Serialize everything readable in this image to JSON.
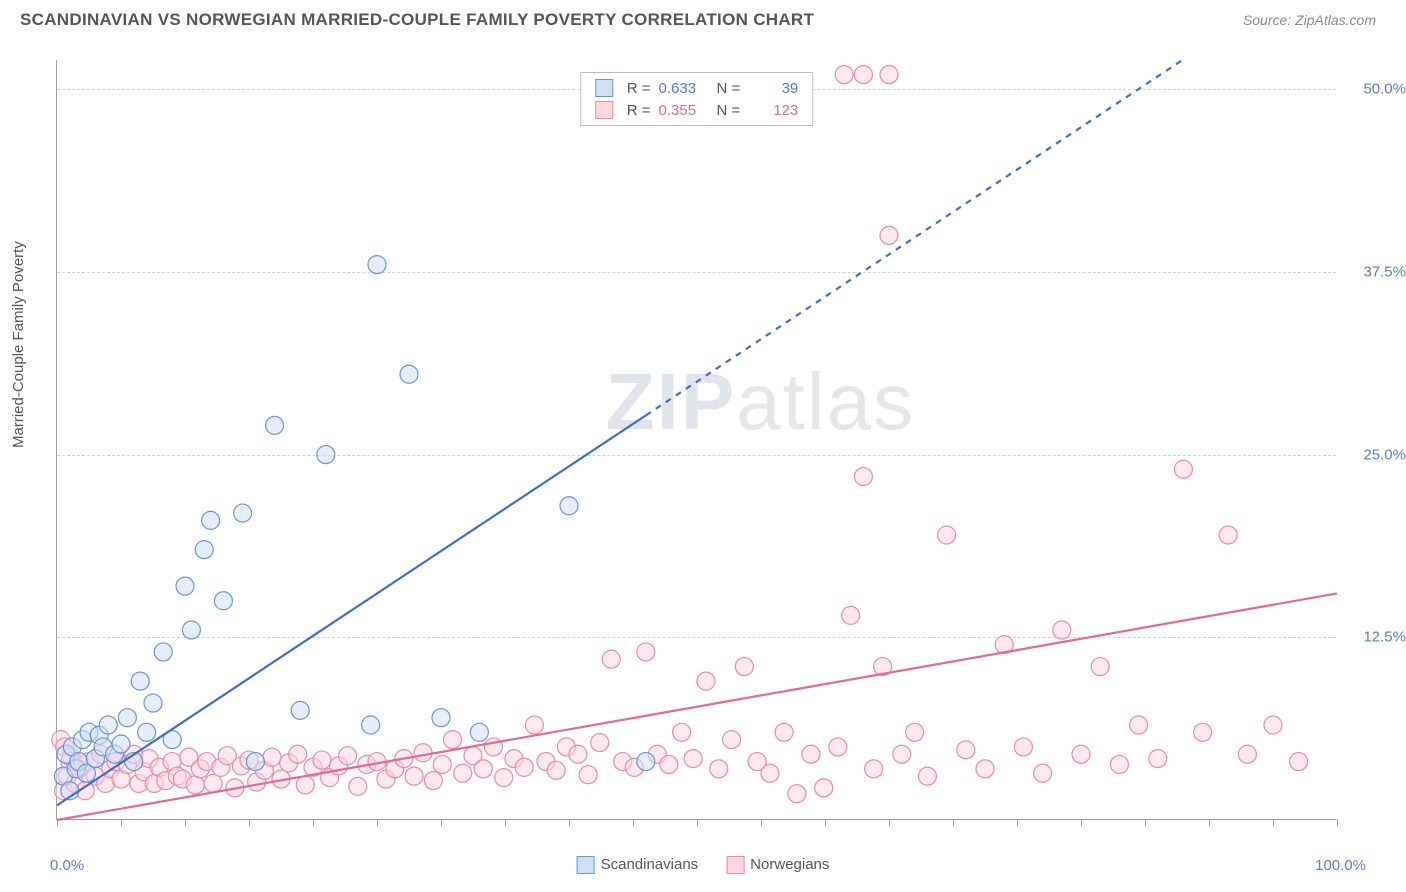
{
  "header": {
    "title": "SCANDINAVIAN VS NORWEGIAN MARRIED-COUPLE FAMILY POVERTY CORRELATION CHART",
    "source_label": "Source:",
    "source_name": "ZipAtlas.com"
  },
  "axes": {
    "y_label": "Married-Couple Family Poverty",
    "x_min_label": "0.0%",
    "x_max_label": "100.0%",
    "xlim": [
      0,
      100
    ],
    "ylim": [
      0,
      52
    ],
    "y_ticks": [
      12.5,
      25.0,
      37.5,
      50.0
    ],
    "y_tick_labels": [
      "12.5%",
      "25.0%",
      "37.5%",
      "50.0%"
    ],
    "x_tick_step": 5,
    "grid_color": "#d0d0d0",
    "axis_color": "#9aa0a6",
    "tick_label_color": "#5b7fb5"
  },
  "watermark": {
    "part1": "ZIP",
    "part2": "atlas"
  },
  "legend_top": {
    "rows": [
      {
        "swatch_fill": "#cfe0f5",
        "swatch_stroke": "#6a94d4",
        "r_label": "R =",
        "r_value": "0.633",
        "n_label": "N =",
        "n_value": "39",
        "value_color": "#4f7fc9"
      },
      {
        "swatch_fill": "#fbd7e0",
        "swatch_stroke": "#e98aa5",
        "r_label": "R =",
        "r_value": "0.355",
        "n_label": "N =",
        "n_value": "123",
        "value_color": "#d86a8b"
      }
    ]
  },
  "legend_bottom": {
    "items": [
      {
        "swatch_fill": "#cfe0f5",
        "swatch_stroke": "#6a94d4",
        "label": "Scandinavians"
      },
      {
        "swatch_fill": "#fbd7e0",
        "swatch_stroke": "#e98aa5",
        "label": "Norwegians"
      }
    ]
  },
  "series": {
    "scandinavians": {
      "type": "scatter",
      "marker_radius": 9,
      "fill": "#cfe0f5",
      "fill_opacity": 0.55,
      "stroke": "#6a94d4",
      "stroke_width": 1.2,
      "trend": {
        "slope": 0.58,
        "intercept": 1.0,
        "solid_xmax": 46,
        "dash_xmax": 88,
        "color": "#3d6ec7",
        "width": 2.2,
        "dash": "6,6"
      },
      "points": [
        [
          0.5,
          3.0
        ],
        [
          0.7,
          4.5
        ],
        [
          1.0,
          2.0
        ],
        [
          1.2,
          5.0
        ],
        [
          1.5,
          3.5
        ],
        [
          1.7,
          4.0
        ],
        [
          2.0,
          5.5
        ],
        [
          2.3,
          3.2
        ],
        [
          2.5,
          6.0
        ],
        [
          3.0,
          4.2
        ],
        [
          3.3,
          5.8
        ],
        [
          3.6,
          5.0
        ],
        [
          4.0,
          6.5
        ],
        [
          4.5,
          4.5
        ],
        [
          5.0,
          5.2
        ],
        [
          5.5,
          7.0
        ],
        [
          6.0,
          4.0
        ],
        [
          6.5,
          9.5
        ],
        [
          7.0,
          6.0
        ],
        [
          7.5,
          8.0
        ],
        [
          8.3,
          11.5
        ],
        [
          9.0,
          5.5
        ],
        [
          10.0,
          16.0
        ],
        [
          10.5,
          13.0
        ],
        [
          11.5,
          18.5
        ],
        [
          12.0,
          20.5
        ],
        [
          13.0,
          15.0
        ],
        [
          14.5,
          21.0
        ],
        [
          15.5,
          4.0
        ],
        [
          17.0,
          27.0
        ],
        [
          19.0,
          7.5
        ],
        [
          21.0,
          25.0
        ],
        [
          24.5,
          6.5
        ],
        [
          25.0,
          38.0
        ],
        [
          27.5,
          30.5
        ],
        [
          30.0,
          7.0
        ],
        [
          33.0,
          6.0
        ],
        [
          40.0,
          21.5
        ],
        [
          46.0,
          4.0
        ]
      ]
    },
    "norwegians": {
      "type": "scatter",
      "marker_radius": 9,
      "fill": "#fbd7e0",
      "fill_opacity": 0.55,
      "stroke": "#e98aa5",
      "stroke_width": 1.2,
      "trend": {
        "slope": 0.155,
        "intercept": 0.0,
        "solid_xmax": 100,
        "dash_xmax": 100,
        "color": "#e26a8c",
        "width": 2.2,
        "dash": ""
      },
      "points": [
        [
          0.3,
          5.5
        ],
        [
          0.5,
          2.0
        ],
        [
          0.6,
          5.0
        ],
        [
          0.8,
          3.0
        ],
        [
          1.0,
          4.0
        ],
        [
          1.1,
          4.3
        ],
        [
          1.4,
          2.5
        ],
        [
          1.7,
          3.5
        ],
        [
          2.0,
          3.7
        ],
        [
          2.2,
          2.0
        ],
        [
          2.5,
          4.0
        ],
        [
          3.0,
          3.0
        ],
        [
          3.4,
          4.5
        ],
        [
          3.8,
          2.5
        ],
        [
          4.2,
          3.5
        ],
        [
          4.6,
          4.0
        ],
        [
          5.0,
          2.8
        ],
        [
          5.5,
          3.8
        ],
        [
          6.0,
          4.5
        ],
        [
          6.4,
          2.5
        ],
        [
          6.8,
          3.3
        ],
        [
          7.2,
          4.2
        ],
        [
          7.6,
          2.5
        ],
        [
          8.0,
          3.6
        ],
        [
          8.5,
          2.7
        ],
        [
          9.0,
          4.0
        ],
        [
          9.4,
          3.0
        ],
        [
          9.8,
          2.8
        ],
        [
          10.3,
          4.3
        ],
        [
          10.8,
          2.4
        ],
        [
          11.2,
          3.5
        ],
        [
          11.7,
          4.0
        ],
        [
          12.2,
          2.5
        ],
        [
          12.8,
          3.6
        ],
        [
          13.3,
          4.4
        ],
        [
          13.9,
          2.2
        ],
        [
          14.4,
          3.7
        ],
        [
          15.0,
          4.1
        ],
        [
          15.6,
          2.6
        ],
        [
          16.2,
          3.4
        ],
        [
          16.8,
          4.3
        ],
        [
          17.5,
          2.8
        ],
        [
          18.1,
          3.9
        ],
        [
          18.8,
          4.5
        ],
        [
          19.4,
          2.4
        ],
        [
          20.0,
          3.6
        ],
        [
          20.7,
          4.1
        ],
        [
          21.3,
          2.9
        ],
        [
          22.0,
          3.7
        ],
        [
          22.7,
          4.4
        ],
        [
          23.5,
          2.3
        ],
        [
          24.2,
          3.8
        ],
        [
          25.0,
          4.0
        ],
        [
          25.7,
          2.8
        ],
        [
          26.4,
          3.5
        ],
        [
          27.1,
          4.2
        ],
        [
          27.9,
          3.0
        ],
        [
          28.6,
          4.6
        ],
        [
          29.4,
          2.7
        ],
        [
          30.1,
          3.8
        ],
        [
          30.9,
          5.5
        ],
        [
          31.7,
          3.2
        ],
        [
          32.5,
          4.4
        ],
        [
          33.3,
          3.5
        ],
        [
          34.1,
          5.0
        ],
        [
          34.9,
          2.9
        ],
        [
          35.7,
          4.2
        ],
        [
          36.5,
          3.6
        ],
        [
          37.3,
          6.5
        ],
        [
          38.2,
          4.0
        ],
        [
          39.0,
          3.4
        ],
        [
          39.8,
          5.0
        ],
        [
          40.7,
          4.5
        ],
        [
          41.5,
          3.1
        ],
        [
          42.4,
          5.3
        ],
        [
          43.3,
          11.0
        ],
        [
          44.2,
          4.0
        ],
        [
          45.1,
          3.6
        ],
        [
          46.0,
          11.5
        ],
        [
          46.9,
          4.5
        ],
        [
          47.8,
          3.8
        ],
        [
          48.8,
          6.0
        ],
        [
          49.7,
          4.2
        ],
        [
          50.7,
          9.5
        ],
        [
          51.7,
          3.5
        ],
        [
          52.7,
          5.5
        ],
        [
          53.7,
          10.5
        ],
        [
          54.7,
          4.0
        ],
        [
          55.7,
          3.2
        ],
        [
          56.8,
          6.0
        ],
        [
          57.8,
          1.8
        ],
        [
          58.9,
          4.5
        ],
        [
          59.9,
          2.2
        ],
        [
          61.0,
          5.0
        ],
        [
          62.0,
          14.0
        ],
        [
          63.0,
          23.5
        ],
        [
          63.8,
          3.5
        ],
        [
          64.5,
          10.5
        ],
        [
          65.0,
          40.0
        ],
        [
          66.0,
          4.5
        ],
        [
          67.0,
          6.0
        ],
        [
          68.0,
          3.0
        ],
        [
          69.5,
          19.5
        ],
        [
          71.0,
          4.8
        ],
        [
          72.5,
          3.5
        ],
        [
          74.0,
          12.0
        ],
        [
          75.5,
          5.0
        ],
        [
          77.0,
          3.2
        ],
        [
          78.5,
          13.0
        ],
        [
          80.0,
          4.5
        ],
        [
          81.5,
          10.5
        ],
        [
          83.0,
          3.8
        ],
        [
          84.5,
          6.5
        ],
        [
          86.0,
          4.2
        ],
        [
          88.0,
          24.0
        ],
        [
          89.5,
          6.0
        ],
        [
          91.5,
          19.5
        ],
        [
          93.0,
          4.5
        ],
        [
          95.0,
          6.5
        ],
        [
          97.0,
          4.0
        ],
        [
          61.5,
          51.0
        ],
        [
          63.0,
          51.0
        ],
        [
          65.0,
          51.0
        ]
      ]
    }
  }
}
